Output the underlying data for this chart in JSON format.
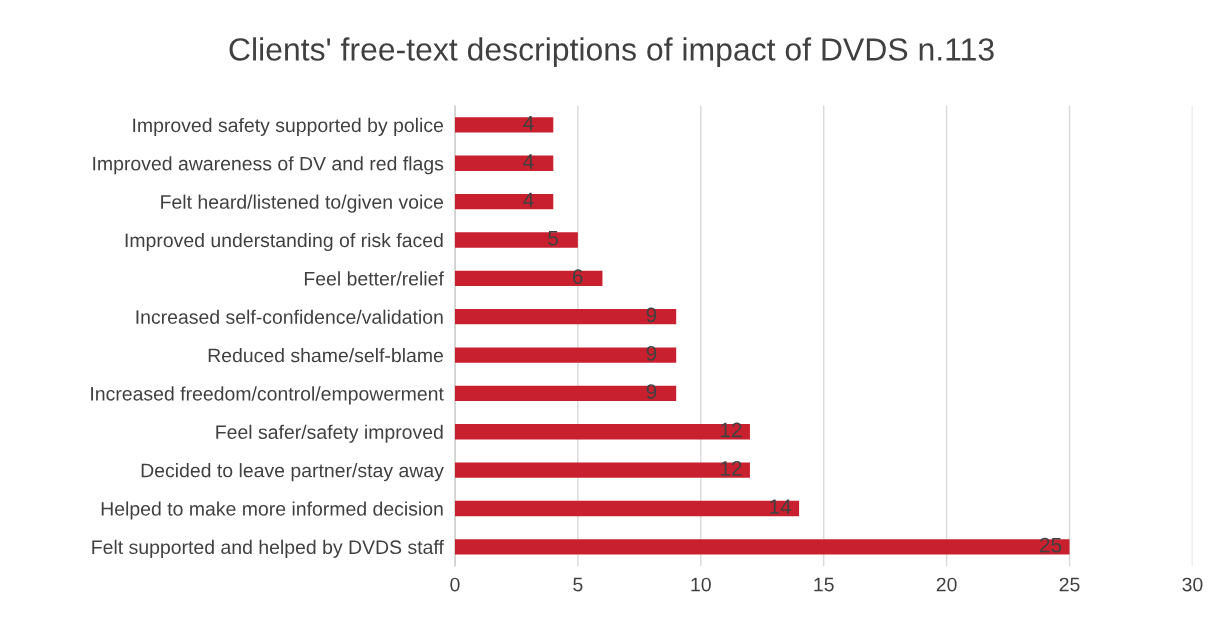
{
  "chart_data": {
    "type": "bar",
    "orientation": "horizontal",
    "title": "Clients' free-text descriptions of impact of DVDS n.113",
    "categories": [
      "Improved safety supported by police",
      "Improved awareness of DV and red flags",
      "Felt heard/listened to/given voice",
      "Improved understanding of risk faced",
      "Feel better/relief",
      "Increased self-confidence/validation",
      "Reduced shame/self-blame",
      "Increased freedom/control/empowerment",
      "Feel safer/safety improved",
      "Decided to leave partner/stay away",
      "Helped to make more informed decision",
      "Felt supported and helped by DVDS staff"
    ],
    "values": [
      4,
      4,
      4,
      5,
      6,
      9,
      9,
      9,
      12,
      12,
      14,
      25
    ],
    "color": "#c8202f",
    "xlim": [
      0,
      30
    ],
    "xticks": [
      0,
      5,
      10,
      15,
      20,
      25,
      30
    ],
    "grid": "x",
    "data_labels": true
  }
}
